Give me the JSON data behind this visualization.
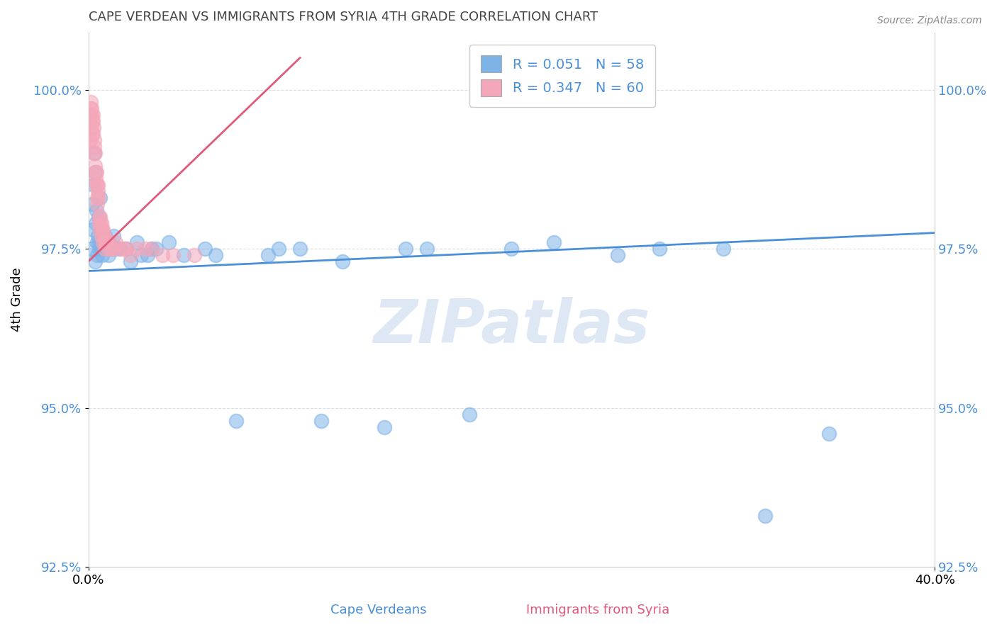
{
  "title": "CAPE VERDEAN VS IMMIGRANTS FROM SYRIA 4TH GRADE CORRELATION CHART",
  "source": "Source: ZipAtlas.com",
  "xlabel_blue": "Cape Verdeans",
  "xlabel_pink": "Immigrants from Syria",
  "ylabel": "4th Grade",
  "xlim": [
    0.0,
    40.0
  ],
  "ylim": [
    92.5,
    100.9
  ],
  "yticks": [
    92.5,
    95.0,
    97.5,
    100.0
  ],
  "ytick_labels": [
    "92.5%",
    "95.0%",
    "97.5%",
    "100.0%"
  ],
  "xtick_labels": [
    "0.0%",
    "40.0%"
  ],
  "blue_color": "#7EB3E8",
  "pink_color": "#F4A7B9",
  "blue_line_color": "#4A90D9",
  "pink_line_color": "#E05A7A",
  "legend_R_blue": "R = 0.051",
  "legend_N_blue": "N = 58",
  "legend_R_pink": "R = 0.347",
  "legend_N_pink": "N = 60",
  "watermark": "ZIPatlas",
  "blue_line_x0": 0.0,
  "blue_line_y0": 97.15,
  "blue_line_x1": 40.0,
  "blue_line_y1": 97.75,
  "pink_line_x0": 0.0,
  "pink_line_y0": 97.3,
  "pink_line_x1": 10.0,
  "pink_line_y1": 100.5,
  "blue_scatter_x": [
    0.15,
    0.18,
    0.22,
    0.25,
    0.28,
    0.3,
    0.32,
    0.35,
    0.38,
    0.4,
    0.42,
    0.45,
    0.48,
    0.5,
    0.52,
    0.55,
    0.58,
    0.6,
    0.65,
    0.7,
    0.75,
    0.8,
    0.85,
    0.9,
    0.95,
    1.0,
    1.1,
    1.2,
    1.3,
    1.5,
    1.8,
    2.0,
    2.3,
    2.8,
    3.2,
    3.8,
    4.5,
    5.5,
    7.0,
    8.5,
    10.0,
    12.0,
    14.0,
    16.0,
    18.0,
    20.0,
    22.0,
    25.0,
    30.0,
    35.0,
    2.5,
    3.0,
    6.0,
    9.0,
    11.0,
    15.0,
    27.0,
    32.0
  ],
  "blue_scatter_y": [
    97.5,
    98.2,
    97.8,
    98.5,
    99.0,
    98.7,
    97.3,
    97.9,
    98.1,
    97.6,
    97.4,
    97.7,
    98.0,
    97.5,
    97.6,
    98.3,
    97.8,
    97.5,
    97.4,
    97.6,
    97.5,
    97.7,
    97.5,
    97.6,
    97.4,
    97.6,
    97.5,
    97.7,
    97.5,
    97.5,
    97.5,
    97.3,
    97.6,
    97.4,
    97.5,
    97.6,
    97.4,
    97.5,
    94.8,
    97.4,
    97.5,
    97.3,
    94.7,
    97.5,
    94.9,
    97.5,
    97.6,
    97.4,
    97.5,
    94.6,
    97.4,
    97.5,
    97.4,
    97.5,
    94.8,
    97.5,
    97.5,
    93.3
  ],
  "pink_scatter_x": [
    0.05,
    0.08,
    0.1,
    0.12,
    0.14,
    0.16,
    0.18,
    0.2,
    0.22,
    0.25,
    0.28,
    0.3,
    0.32,
    0.35,
    0.38,
    0.4,
    0.42,
    0.45,
    0.48,
    0.5,
    0.52,
    0.55,
    0.58,
    0.6,
    0.65,
    0.7,
    0.75,
    0.8,
    0.85,
    0.9,
    0.95,
    1.0,
    1.1,
    1.2,
    1.3,
    1.5,
    1.7,
    2.0,
    2.3,
    2.7,
    3.0,
    3.5,
    4.0,
    5.0,
    1.8,
    0.38,
    0.42,
    0.68,
    0.72,
    0.55,
    0.45,
    0.35,
    0.28,
    0.22,
    0.18,
    0.15,
    0.12,
    0.25,
    0.6,
    0.8
  ],
  "pink_scatter_y": [
    99.5,
    99.2,
    99.6,
    99.8,
    99.4,
    99.7,
    99.3,
    99.5,
    99.6,
    99.4,
    99.2,
    99.0,
    98.8,
    98.6,
    98.5,
    98.3,
    98.2,
    98.5,
    98.3,
    98.0,
    97.9,
    97.8,
    97.9,
    97.7,
    97.8,
    97.6,
    97.7,
    97.5,
    97.6,
    97.6,
    97.5,
    97.6,
    97.5,
    97.5,
    97.6,
    97.5,
    97.5,
    97.4,
    97.5,
    97.5,
    97.5,
    97.4,
    97.4,
    97.4,
    97.5,
    98.7,
    98.5,
    97.8,
    97.7,
    98.0,
    98.4,
    98.7,
    99.1,
    99.3,
    99.5,
    99.6,
    99.7,
    99.0,
    97.9,
    97.6
  ]
}
